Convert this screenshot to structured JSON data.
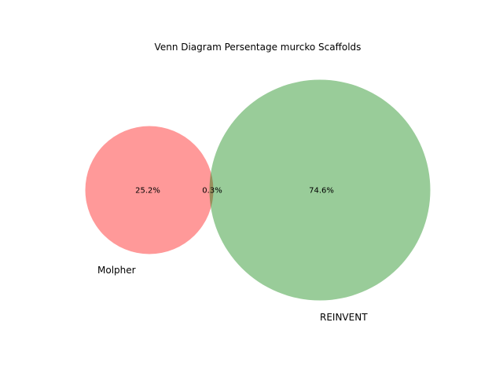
{
  "figure": {
    "title": "Venn Diagram Persentage murcko Scaffolds"
  },
  "sets": [
    {
      "name": "Molpher",
      "color": "#ff0000",
      "alpha": 0.4
    },
    {
      "name": "REINVENT",
      "color": "#008000",
      "alpha": 0.4
    }
  ],
  "regions": {
    "molpher_only": "25.2%",
    "overlap": "0.3%",
    "reinvent_only": "74.6%"
  }
}
